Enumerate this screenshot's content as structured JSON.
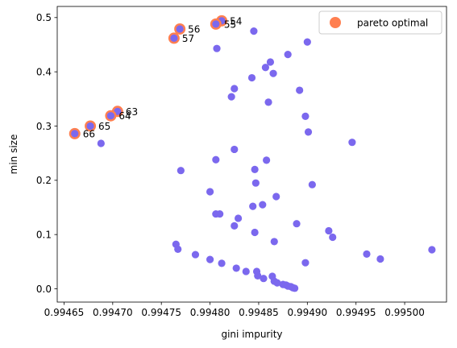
{
  "chart_data": {
    "type": "scatter",
    "xlabel": "gini impurity",
    "ylabel": "min size",
    "xlim": [
      0.994643,
      0.995043
    ],
    "ylim": [
      -0.0245,
      0.5205
    ],
    "xticks": [
      0.99465,
      0.9947,
      0.99475,
      0.9948,
      0.99485,
      0.9949,
      0.99495,
      0.995
    ],
    "xtick_labels": [
      "0.99465",
      "0.99470",
      "0.99475",
      "0.99480",
      "0.99485",
      "0.99490",
      "0.99495",
      "0.99500"
    ],
    "yticks": [
      0.0,
      0.1,
      0.2,
      0.3,
      0.4,
      0.5
    ],
    "ytick_labels": [
      "0.0",
      "0.1",
      "0.2",
      "0.3",
      "0.4",
      "0.5"
    ],
    "grid": false,
    "legend": {
      "position": "top-right",
      "entries": [
        "pareto optimal"
      ]
    },
    "colors": {
      "points": "#7B68EE",
      "pareto": "#FF7F50",
      "axes": "#000000"
    },
    "series": [
      {
        "name": "",
        "points": [
          [
            0.994845,
            0.475
          ],
          [
            0.9949,
            0.455
          ],
          [
            0.994807,
            0.443
          ],
          [
            0.99488,
            0.432
          ],
          [
            0.994862,
            0.418
          ],
          [
            0.994857,
            0.408
          ],
          [
            0.994865,
            0.397
          ],
          [
            0.994843,
            0.389
          ],
          [
            0.994825,
            0.369
          ],
          [
            0.994892,
            0.366
          ],
          [
            0.994822,
            0.354
          ],
          [
            0.99486,
            0.344
          ],
          [
            0.994898,
            0.318
          ],
          [
            0.994901,
            0.289
          ],
          [
            0.994688,
            0.268
          ],
          [
            0.994946,
            0.27
          ],
          [
            0.994825,
            0.257
          ],
          [
            0.994806,
            0.238
          ],
          [
            0.994858,
            0.237
          ],
          [
            0.99477,
            0.218
          ],
          [
            0.994846,
            0.22
          ],
          [
            0.994847,
            0.195
          ],
          [
            0.994905,
            0.192
          ],
          [
            0.9948,
            0.179
          ],
          [
            0.994868,
            0.17
          ],
          [
            0.994854,
            0.155
          ],
          [
            0.994844,
            0.152
          ],
          [
            0.994829,
            0.13
          ],
          [
            0.994806,
            0.138
          ],
          [
            0.99481,
            0.138
          ],
          [
            0.994889,
            0.12
          ],
          [
            0.994825,
            0.116
          ],
          [
            0.994922,
            0.107
          ],
          [
            0.994846,
            0.104
          ],
          [
            0.994926,
            0.095
          ],
          [
            0.994866,
            0.087
          ],
          [
            0.994765,
            0.082
          ],
          [
            0.994767,
            0.073
          ],
          [
            0.995028,
            0.072
          ],
          [
            0.994961,
            0.064
          ],
          [
            0.994785,
            0.063
          ],
          [
            0.994975,
            0.055
          ],
          [
            0.9948,
            0.054
          ],
          [
            0.994898,
            0.048
          ],
          [
            0.994812,
            0.047
          ],
          [
            0.994827,
            0.038
          ],
          [
            0.994837,
            0.032
          ],
          [
            0.994848,
            0.032
          ],
          [
            0.994849,
            0.024
          ],
          [
            0.994864,
            0.023
          ],
          [
            0.994855,
            0.019
          ],
          [
            0.994866,
            0.014
          ],
          [
            0.994869,
            0.011
          ],
          [
            0.994875,
            0.008
          ],
          [
            0.994878,
            0.007
          ],
          [
            0.99488,
            0.005
          ],
          [
            0.994883,
            0.004
          ],
          [
            0.994885,
            0.002
          ],
          [
            0.994887,
            0.001
          ]
        ]
      },
      {
        "name": "pareto optimal",
        "points": [
          [
            0.994812,
            0.494
          ],
          [
            0.994806,
            0.488
          ],
          [
            0.994769,
            0.479
          ],
          [
            0.994763,
            0.462
          ],
          [
            0.994705,
            0.327
          ],
          [
            0.994698,
            0.319
          ],
          [
            0.994677,
            0.3
          ],
          [
            0.994661,
            0.286
          ]
        ],
        "labels": [
          "54",
          "55",
          "56",
          "57",
          "63",
          "64",
          "65",
          "66"
        ]
      }
    ]
  }
}
